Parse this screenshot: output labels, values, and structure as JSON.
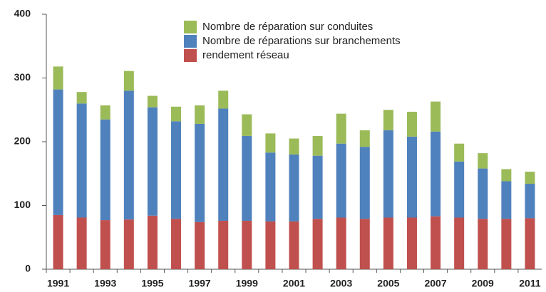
{
  "chart_data": {
    "type": "stacked_bar",
    "categories": [
      "1991",
      null,
      "1993",
      null,
      "1995",
      null,
      "1997",
      null,
      "1999",
      null,
      "2001",
      null,
      "2003",
      null,
      "2005",
      null,
      "2007",
      null,
      "2009",
      null,
      "2011"
    ],
    "series": [
      {
        "name": "rendement réseau",
        "color": "#c0504d",
        "values": [
          85,
          81,
          77,
          78,
          84,
          79,
          74,
          76,
          76,
          75,
          75,
          79,
          81,
          79,
          81,
          81,
          83,
          81,
          79,
          79,
          80
        ]
      },
      {
        "name": "Nombre de réparations sur  branchements",
        "color": "#4f81bd",
        "values": [
          197,
          179,
          158,
          202,
          170,
          153,
          154,
          176,
          133,
          108,
          105,
          99,
          116,
          113,
          137,
          127,
          133,
          88,
          79,
          59,
          54
        ]
      },
      {
        "name": "Nombre de réparation sur conduites",
        "color": "#9bbb59",
        "values": [
          36,
          18,
          22,
          31,
          18,
          23,
          29,
          28,
          34,
          30,
          25,
          31,
          47,
          26,
          32,
          39,
          47,
          28,
          24,
          19,
          19
        ]
      }
    ],
    "ylim": [
      0,
      400
    ],
    "yticks": [
      0,
      100,
      200,
      300,
      400
    ],
    "legend": "top"
  }
}
